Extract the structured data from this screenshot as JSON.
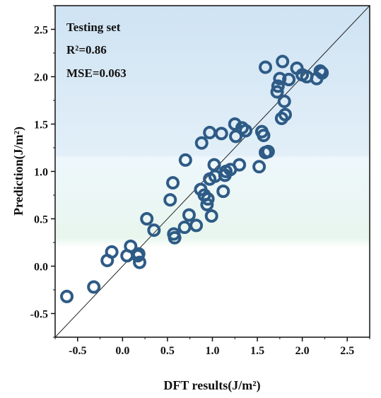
{
  "chart_data": {
    "type": "scatter",
    "title": "",
    "xlabel": "DFT results(J/m²)",
    "ylabel": "Prediction(J/m²)",
    "xlim": [
      -0.75,
      2.75
    ],
    "ylim": [
      -0.75,
      2.75
    ],
    "xticks": [
      "-0.5",
      "0.0",
      "0.5",
      "1.0",
      "1.5",
      "2.0",
      "2.5"
    ],
    "yticks": [
      "-0.5",
      "0.0",
      "0.5",
      "1.0",
      "1.5",
      "2.0",
      "2.5"
    ],
    "annotations": {
      "set_label": "Testing set",
      "r2": "R²=0.86",
      "mse": "MSE=0.063"
    },
    "diagonal_line": true,
    "grid": false,
    "colors": {
      "marker": "#2e5b86",
      "band_top": "#cfe3f3",
      "band_mid": "#eaf5fb",
      "band_low": "#e6f6ec"
    },
    "series": [
      {
        "x": [
          -0.62,
          -0.32,
          -0.17,
          -0.12,
          0.05,
          0.09,
          0.17,
          0.18,
          0.19,
          0.27,
          0.35,
          0.53,
          0.56,
          0.57,
          0.58,
          0.69,
          0.7,
          0.74,
          0.82,
          0.87,
          0.91,
          0.94,
          0.95,
          0.97,
          0.99,
          1.02,
          1.03,
          0.88,
          0.97,
          1.1,
          1.12,
          1.14,
          1.15,
          1.2,
          1.25,
          1.26,
          1.3,
          1.33,
          1.37,
          1.52,
          1.55,
          1.57,
          1.59,
          1.62,
          1.59,
          1.72,
          1.73,
          1.75,
          1.77,
          1.78,
          1.8,
          1.81,
          1.85,
          1.94,
          2.0,
          2.05,
          2.16,
          2.2,
          2.22
        ],
        "y": [
          -0.32,
          -0.22,
          0.06,
          0.15,
          0.11,
          0.21,
          0.11,
          0.13,
          0.04,
          0.5,
          0.38,
          0.7,
          0.88,
          0.34,
          0.3,
          0.41,
          1.12,
          0.54,
          0.43,
          0.81,
          0.75,
          0.65,
          0.71,
          0.92,
          0.53,
          1.07,
          0.95,
          1.3,
          1.41,
          1.4,
          0.79,
          0.96,
          1.0,
          1.02,
          1.5,
          1.37,
          1.07,
          1.46,
          1.43,
          1.05,
          1.42,
          1.38,
          1.2,
          1.21,
          2.1,
          1.84,
          1.9,
          1.98,
          1.56,
          2.16,
          1.74,
          1.6,
          1.97,
          2.09,
          2.02,
          2.0,
          1.98,
          2.06,
          2.04
        ]
      }
    ]
  }
}
